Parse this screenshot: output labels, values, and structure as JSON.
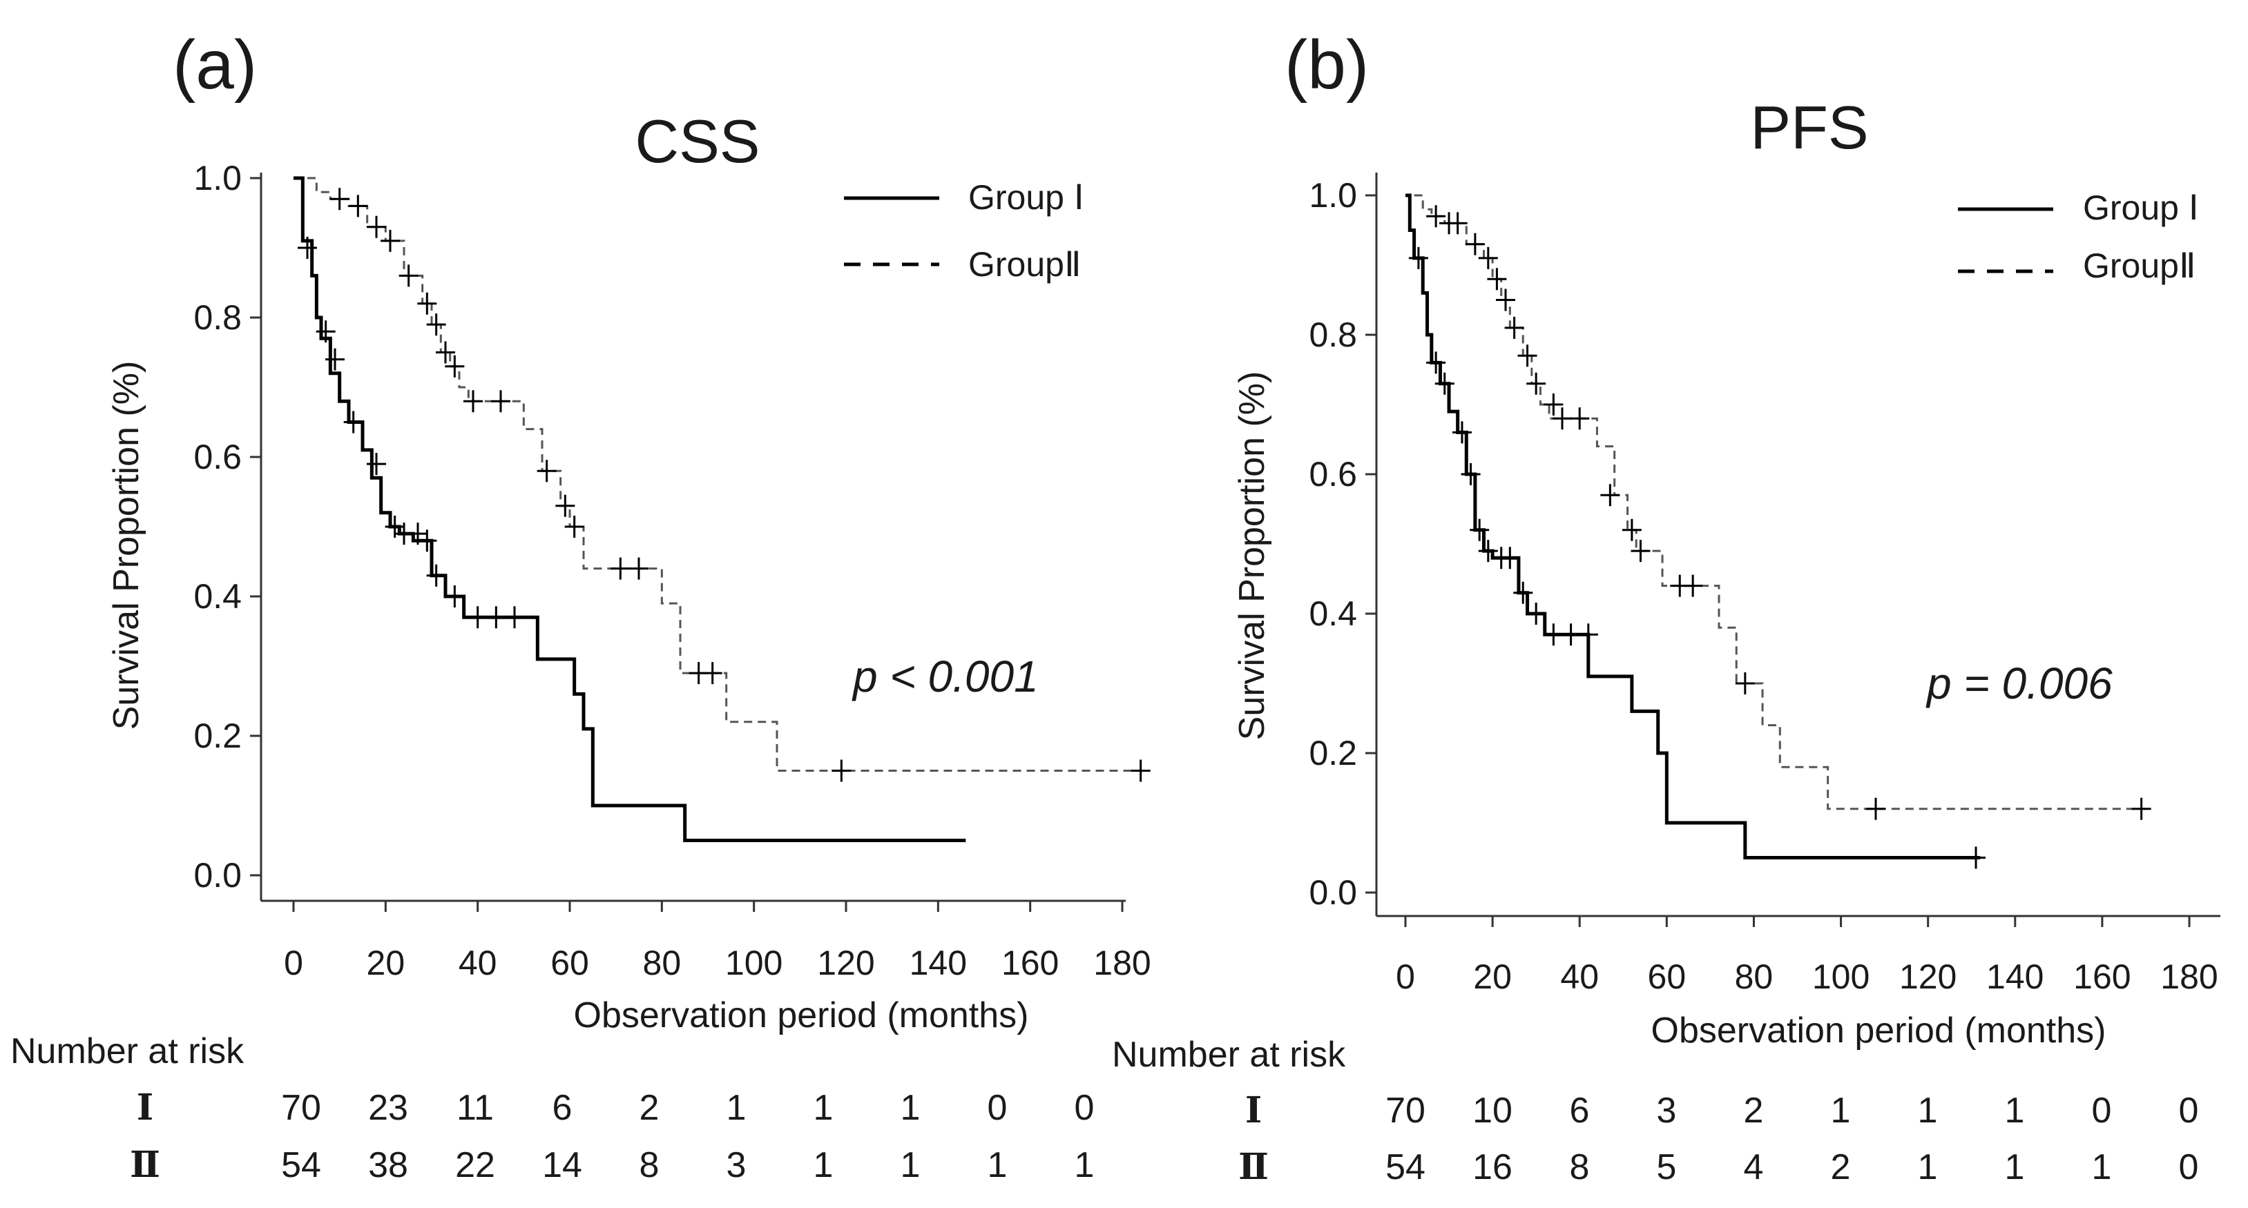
{
  "chart_data": [
    {
      "type": "line",
      "panel": "(a)",
      "title": "CSS",
      "xlabel": "Observation period (months)",
      "ylabel": "Survival Proportion (%)",
      "xlim": [
        0,
        180
      ],
      "ylim": [
        0.0,
        1.0
      ],
      "xticks": [
        "0",
        "20",
        "40",
        "60",
        "80",
        "100",
        "120",
        "140",
        "160",
        "180"
      ],
      "yticks": [
        "0.0",
        "0.2",
        "0.4",
        "0.6",
        "0.8",
        "1.0"
      ],
      "legend": [
        "Group Ⅰ",
        "GroupⅡ"
      ],
      "annotation": "p < 0.001",
      "series": [
        {
          "name": "Group Ⅰ",
          "style": "solid",
          "steps": [
            [
              0,
              1.0
            ],
            [
              2,
              0.91
            ],
            [
              4,
              0.86
            ],
            [
              5,
              0.8
            ],
            [
              6,
              0.77
            ],
            [
              8,
              0.72
            ],
            [
              10,
              0.68
            ],
            [
              12,
              0.65
            ],
            [
              15,
              0.61
            ],
            [
              17,
              0.57
            ],
            [
              19,
              0.52
            ],
            [
              21,
              0.5
            ],
            [
              23,
              0.49
            ],
            [
              26,
              0.48
            ],
            [
              30,
              0.43
            ],
            [
              33,
              0.4
            ],
            [
              37,
              0.37
            ],
            [
              53,
              0.31
            ],
            [
              61,
              0.26
            ],
            [
              63,
              0.21
            ],
            [
              65,
              0.1
            ],
            [
              85,
              0.05
            ],
            [
              146,
              0.05
            ]
          ],
          "censored": [
            [
              3,
              0.9
            ],
            [
              7,
              0.78
            ],
            [
              9,
              0.74
            ],
            [
              13,
              0.65
            ],
            [
              18,
              0.59
            ],
            [
              22,
              0.5
            ],
            [
              24,
              0.49
            ],
            [
              27,
              0.49
            ],
            [
              29,
              0.48
            ],
            [
              31,
              0.43
            ],
            [
              35,
              0.4
            ],
            [
              40,
              0.37
            ],
            [
              44,
              0.37
            ],
            [
              48,
              0.37
            ]
          ]
        },
        {
          "name": "GroupⅡ",
          "style": "dashed",
          "steps": [
            [
              3,
              1.0
            ],
            [
              5,
              0.98
            ],
            [
              8,
              0.97
            ],
            [
              12,
              0.96
            ],
            [
              16,
              0.93
            ],
            [
              20,
              0.91
            ],
            [
              24,
              0.86
            ],
            [
              28,
              0.82
            ],
            [
              30,
              0.79
            ],
            [
              32,
              0.75
            ],
            [
              34,
              0.73
            ],
            [
              36,
              0.7
            ],
            [
              38,
              0.68
            ],
            [
              50,
              0.64
            ],
            [
              54,
              0.58
            ],
            [
              58,
              0.53
            ],
            [
              60,
              0.5
            ],
            [
              63,
              0.44
            ],
            [
              80,
              0.39
            ],
            [
              84,
              0.29
            ],
            [
              94,
              0.22
            ],
            [
              105,
              0.15
            ],
            [
              185,
              0.15
            ]
          ],
          "censored": [
            [
              10,
              0.97
            ],
            [
              14,
              0.96
            ],
            [
              18,
              0.93
            ],
            [
              21,
              0.91
            ],
            [
              25,
              0.86
            ],
            [
              29,
              0.82
            ],
            [
              31,
              0.79
            ],
            [
              33,
              0.75
            ],
            [
              35,
              0.73
            ],
            [
              39,
              0.68
            ],
            [
              45,
              0.68
            ],
            [
              55,
              0.58
            ],
            [
              59,
              0.53
            ],
            [
              61,
              0.5
            ],
            [
              71,
              0.44
            ],
            [
              75,
              0.44
            ],
            [
              88,
              0.29
            ],
            [
              91,
              0.29
            ],
            [
              119,
              0.15
            ],
            [
              184,
              0.15
            ]
          ]
        }
      ],
      "number_at_risk": {
        "heading": "Number at risk",
        "rows": [
          {
            "label": "Ⅰ",
            "values": [
              "70",
              "23",
              "11",
              "6",
              "2",
              "1",
              "1",
              "1",
              "0",
              "0"
            ]
          },
          {
            "label": "Ⅱ",
            "values": [
              "54",
              "38",
              "22",
              "14",
              "8",
              "3",
              "1",
              "1",
              "1",
              "1"
            ]
          }
        ]
      }
    },
    {
      "type": "line",
      "panel": "(b)",
      "title": "PFS",
      "xlabel": "Observation period (months)",
      "ylabel": "Survival Proportion (%)",
      "xlim": [
        0,
        180
      ],
      "ylim": [
        0.0,
        1.0
      ],
      "xticks": [
        "0",
        "20",
        "40",
        "60",
        "80",
        "100",
        "120",
        "140",
        "160",
        "180"
      ],
      "yticks": [
        "0.0",
        "0.2",
        "0.4",
        "0.6",
        "0.8",
        "1.0"
      ],
      "legend": [
        "Group Ⅰ",
        "GroupⅡ"
      ],
      "annotation": "p = 0.006",
      "series": [
        {
          "name": "Group Ⅰ",
          "style": "solid",
          "steps": [
            [
              0,
              1.0
            ],
            [
              1,
              0.95
            ],
            [
              2,
              0.91
            ],
            [
              4,
              0.86
            ],
            [
              5,
              0.8
            ],
            [
              6,
              0.76
            ],
            [
              8,
              0.73
            ],
            [
              10,
              0.69
            ],
            [
              12,
              0.66
            ],
            [
              14,
              0.6
            ],
            [
              16,
              0.52
            ],
            [
              18,
              0.49
            ],
            [
              20,
              0.48
            ],
            [
              26,
              0.43
            ],
            [
              28,
              0.4
            ],
            [
              32,
              0.37
            ],
            [
              42,
              0.31
            ],
            [
              52,
              0.26
            ],
            [
              58,
              0.2
            ],
            [
              60,
              0.1
            ],
            [
              78,
              0.05
            ],
            [
              132,
              0.05
            ]
          ],
          "censored": [
            [
              3,
              0.91
            ],
            [
              7,
              0.76
            ],
            [
              9,
              0.73
            ],
            [
              13,
              0.66
            ],
            [
              15,
              0.6
            ],
            [
              17,
              0.52
            ],
            [
              19,
              0.49
            ],
            [
              22,
              0.48
            ],
            [
              24,
              0.48
            ],
            [
              27,
              0.43
            ],
            [
              30,
              0.4
            ],
            [
              34,
              0.37
            ],
            [
              38,
              0.37
            ],
            [
              42,
              0.37
            ],
            [
              131,
              0.05
            ]
          ]
        },
        {
          "name": "GroupⅡ",
          "style": "dashed",
          "steps": [
            [
              2,
              1.0
            ],
            [
              4,
              0.98
            ],
            [
              6,
              0.97
            ],
            [
              9,
              0.96
            ],
            [
              14,
              0.93
            ],
            [
              18,
              0.91
            ],
            [
              20,
              0.88
            ],
            [
              22,
              0.85
            ],
            [
              24,
              0.81
            ],
            [
              27,
              0.77
            ],
            [
              29,
              0.73
            ],
            [
              31,
              0.7
            ],
            [
              33,
              0.68
            ],
            [
              44,
              0.64
            ],
            [
              48,
              0.57
            ],
            [
              51,
              0.52
            ],
            [
              53,
              0.49
            ],
            [
              59,
              0.44
            ],
            [
              72,
              0.38
            ],
            [
              76,
              0.3
            ],
            [
              82,
              0.24
            ],
            [
              86,
              0.18
            ],
            [
              97,
              0.12
            ],
            [
              170,
              0.12
            ]
          ],
          "censored": [
            [
              7,
              0.97
            ],
            [
              10,
              0.96
            ],
            [
              12,
              0.96
            ],
            [
              16,
              0.93
            ],
            [
              19,
              0.91
            ],
            [
              21,
              0.88
            ],
            [
              23,
              0.85
            ],
            [
              25,
              0.81
            ],
            [
              28,
              0.77
            ],
            [
              30,
              0.73
            ],
            [
              34,
              0.7
            ],
            [
              36,
              0.68
            ],
            [
              40,
              0.68
            ],
            [
              47,
              0.57
            ],
            [
              52,
              0.52
            ],
            [
              54,
              0.49
            ],
            [
              63,
              0.44
            ],
            [
              66,
              0.44
            ],
            [
              78,
              0.3
            ],
            [
              108,
              0.12
            ],
            [
              169,
              0.12
            ]
          ]
        }
      ],
      "number_at_risk": {
        "heading": "Number at risk",
        "rows": [
          {
            "label": "Ⅰ",
            "values": [
              "70",
              "10",
              "6",
              "3",
              "2",
              "1",
              "1",
              "1",
              "0",
              "0"
            ]
          },
          {
            "label": "Ⅱ",
            "values": [
              "54",
              "16",
              "8",
              "5",
              "4",
              "2",
              "1",
              "1",
              "1",
              "0"
            ]
          }
        ]
      }
    }
  ]
}
